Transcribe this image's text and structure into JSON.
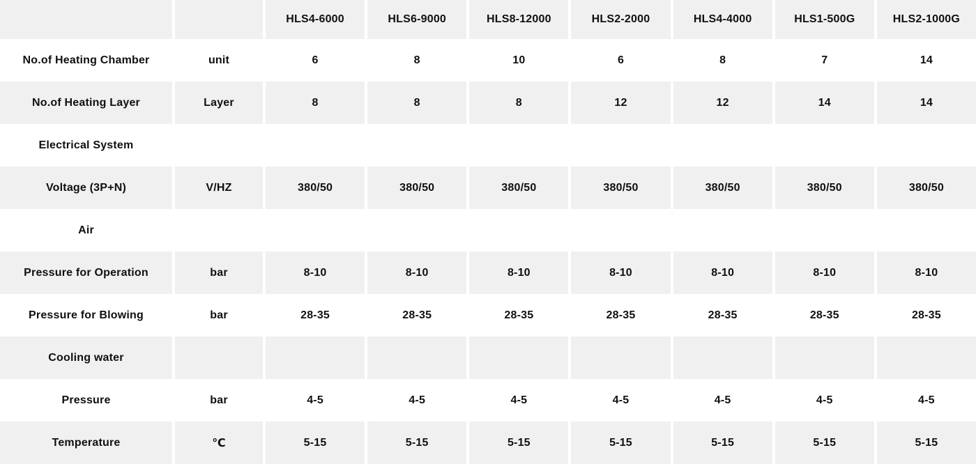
{
  "colors": {
    "stripe": "#f0f0f0",
    "background": "#ffffff",
    "text": "#101010"
  },
  "chart_data": {
    "type": "table",
    "columns": [
      "",
      "",
      "HLS4-6000",
      "HLS6-9000",
      "HLS8-12000",
      "HLS2-2000",
      "HLS4-4000",
      "HLS1-500G",
      "HLS2-1000G"
    ],
    "rows": [
      {
        "name": "no-of-heating-chamber",
        "cells": [
          "No.of Heating Chamber",
          "unit",
          "6",
          "8",
          "10",
          "6",
          "8",
          "7",
          "14"
        ]
      },
      {
        "name": "no-of-heating-layer",
        "cells": [
          "No.of Heating Layer",
          "Layer",
          "8",
          "8",
          "8",
          "12",
          "12",
          "14",
          "14"
        ]
      },
      {
        "name": "electrical-system",
        "cells": [
          "Electrical System",
          "",
          "",
          "",
          "",
          "",
          "",
          "",
          ""
        ]
      },
      {
        "name": "voltage-3p-n",
        "cells": [
          "Voltage (3P+N)",
          "V/HZ",
          "380/50",
          "380/50",
          "380/50",
          "380/50",
          "380/50",
          "380/50",
          "380/50"
        ]
      },
      {
        "name": "air",
        "cells": [
          "Air",
          "",
          "",
          "",
          "",
          "",
          "",
          "",
          ""
        ]
      },
      {
        "name": "pressure-for-operation",
        "cells": [
          "Pressure for Operation",
          "bar",
          "8-10",
          "8-10",
          "8-10",
          "8-10",
          "8-10",
          "8-10",
          "8-10"
        ]
      },
      {
        "name": "pressure-for-blowing",
        "cells": [
          "Pressure for Blowing",
          "bar",
          "28-35",
          "28-35",
          "28-35",
          "28-35",
          "28-35",
          "28-35",
          "28-35"
        ]
      },
      {
        "name": "cooling-water",
        "cells": [
          "Cooling water",
          "",
          "",
          "",
          "",
          "",
          "",
          "",
          ""
        ]
      },
      {
        "name": "pressure",
        "cells": [
          "Pressure",
          "bar",
          "4-5",
          "4-5",
          "4-5",
          "4-5",
          "4-5",
          "4-5",
          "4-5"
        ]
      },
      {
        "name": "temperature",
        "cells": [
          "Temperature",
          "℃",
          "5-15",
          "5-15",
          "5-15",
          "5-15",
          "5-15",
          "5-15",
          "5-15"
        ]
      }
    ]
  }
}
